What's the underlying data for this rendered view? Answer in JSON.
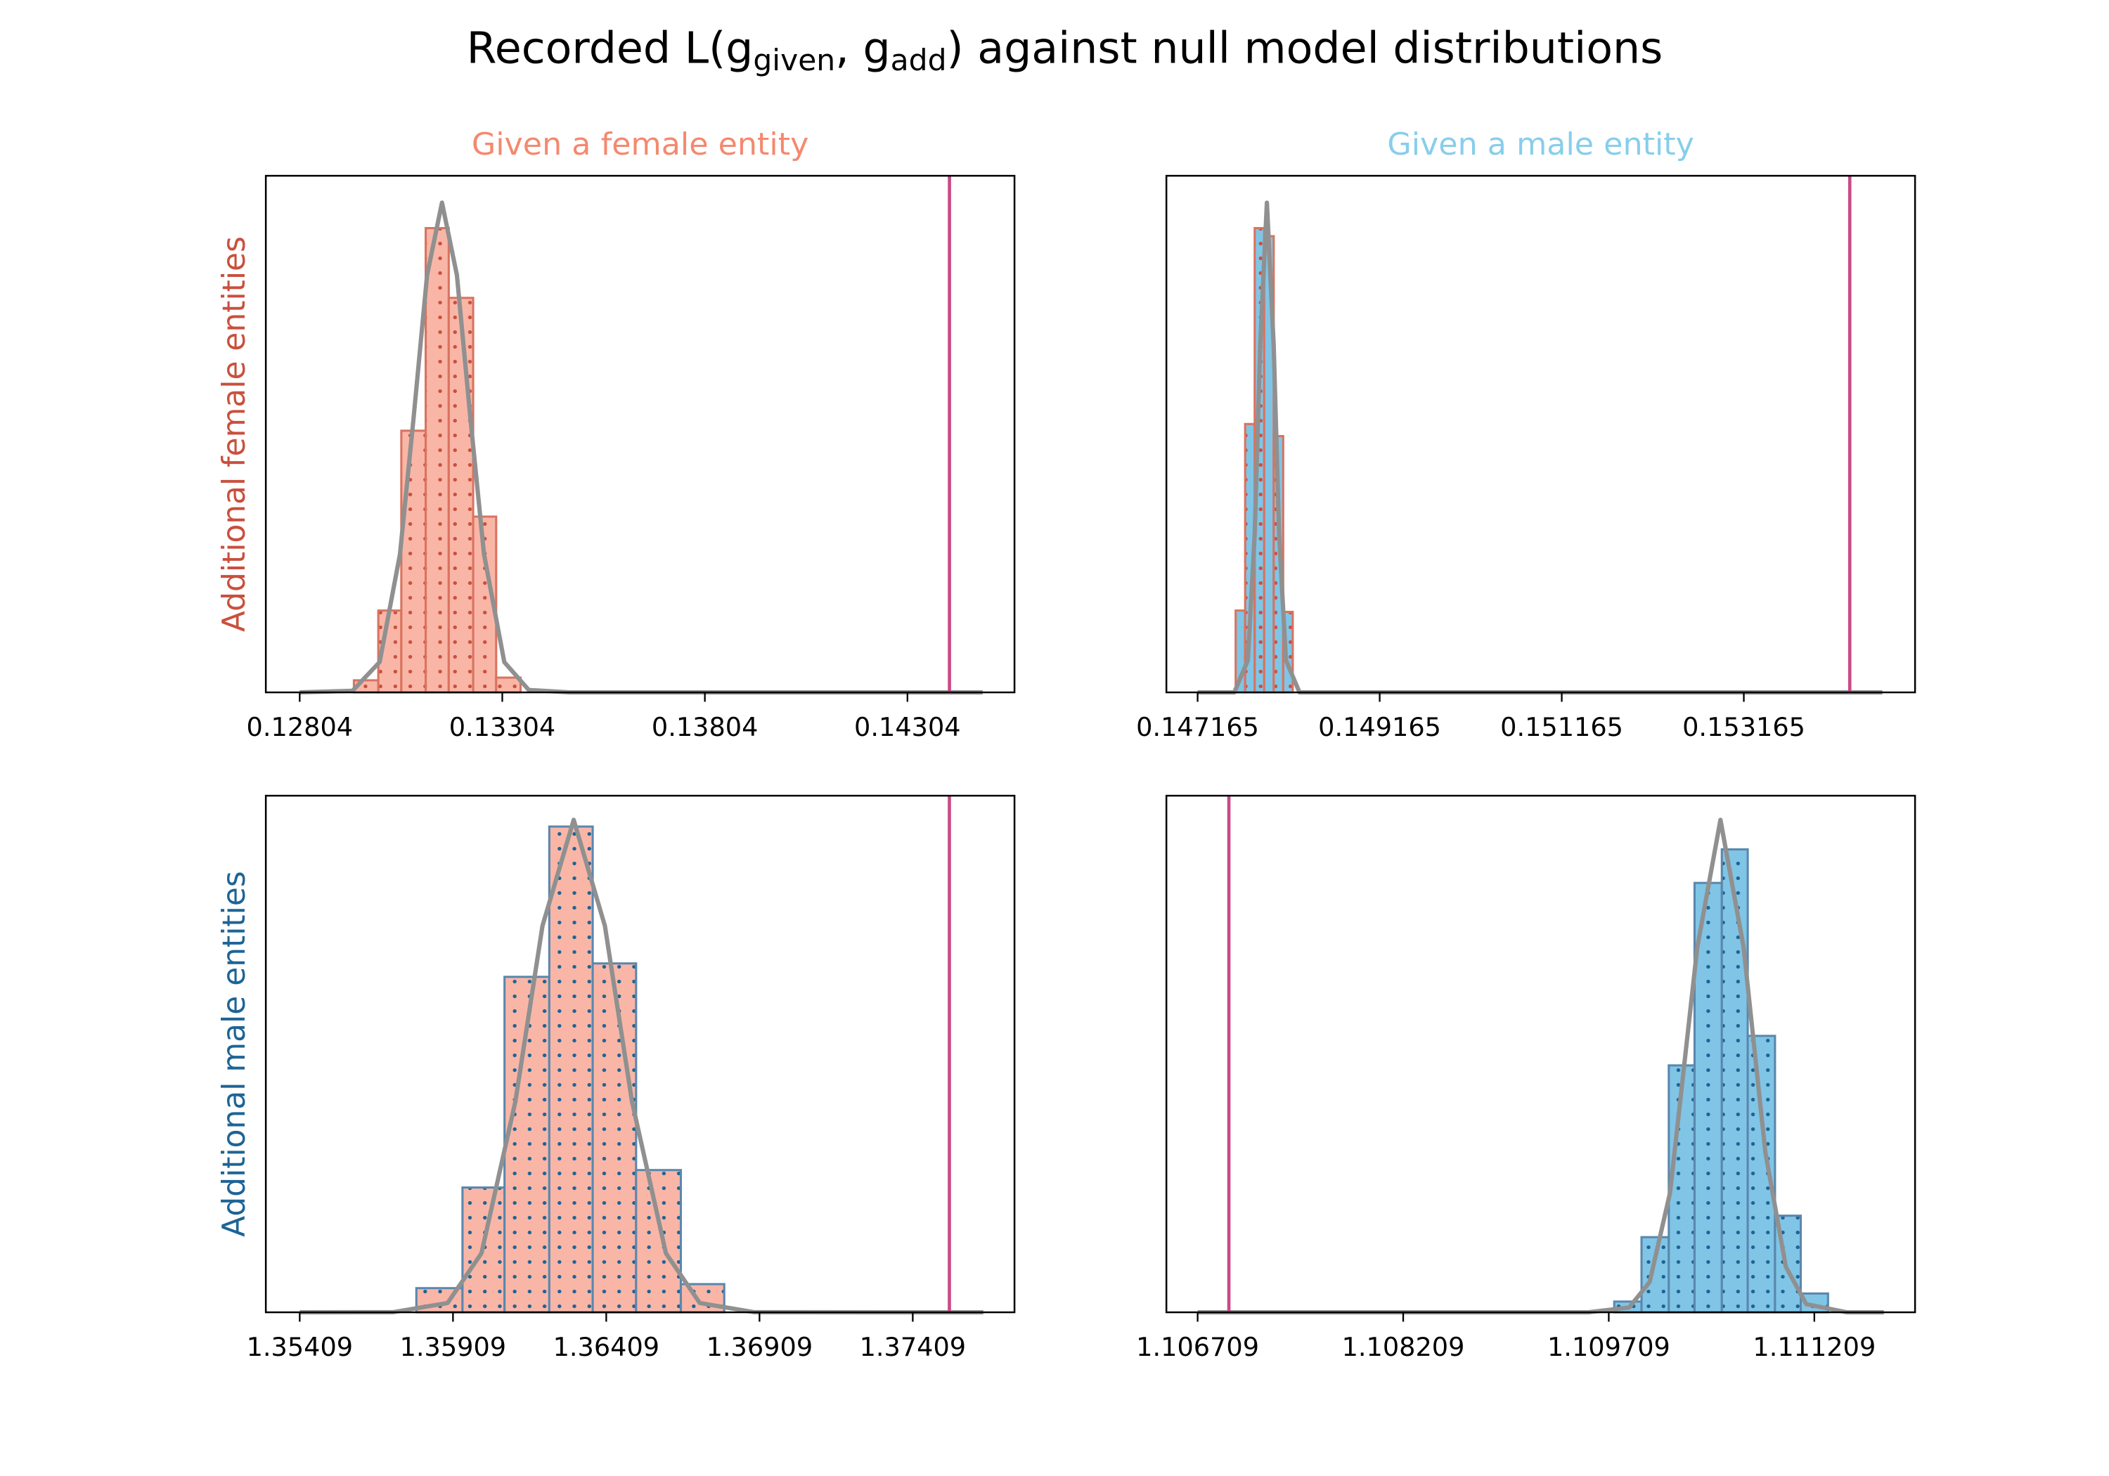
{
  "title": [
    "Recorded L(g",
    "given",
    ", g",
    "add",
    ") against null model distributions"
  ],
  "chart_data": [
    {
      "type": "histogram",
      "title": "Given a female entity",
      "title_color": "#f4896f",
      "ylabel": "Additional female entities",
      "ylabel_color": "#c9503d",
      "bins": [
        0.129378,
        0.12998,
        0.130548,
        0.13115,
        0.131719,
        0.132321,
        0.132889,
        0.133491
      ],
      "values": [
        9,
        61,
        195,
        346,
        294,
        131,
        11
      ],
      "color": "#f9b6a7",
      "edgecolor": "#d9735f",
      "hatch_color": "#c9503d",
      "kde": {
        "x": [
          0.12804,
          0.129344,
          0.130013,
          0.130515,
          0.130849,
          0.131184,
          0.131552,
          0.13192,
          0.132254,
          0.132589,
          0.13309,
          0.133692,
          0.134696,
          0.144896
        ],
        "values": [
          0,
          1.2,
          22.6,
          103,
          204,
          311,
          365,
          311,
          204,
          103,
          22.6,
          1.8,
          0,
          0
        ],
        "color": "#909090"
      },
      "vline": 0.144077,
      "vline_color": "#c94a8a",
      "xlim": [
        0.127204,
        0.145682
      ],
      "ylim": [
        0,
        385
      ],
      "xticks": [
        0.12804,
        0.13304,
        0.13804,
        0.14304
      ]
    },
    {
      "type": "histogram",
      "title": "Given a male entity",
      "title_color": "#87ceeb",
      "bins": [
        0.147583,
        0.147687,
        0.147792,
        0.147896,
        0.148001,
        0.148105,
        0.14821
      ],
      "values": [
        61,
        200,
        346,
        340,
        191,
        60
      ],
      "color": "#80c5e6",
      "edgecolor": "#d9735f",
      "hatch_color": "#c9503d",
      "kde": {
        "x": [
          0.147165,
          0.147568,
          0.147717,
          0.147792,
          0.147852,
          0.147926,
          0.148001,
          0.14806,
          0.148135,
          0.148284,
          0.154687
        ],
        "values": [
          0,
          0,
          24,
          118,
          258,
          365,
          258,
          118,
          24,
          0,
          0
        ],
        "color": "#909090"
      },
      "vline": 0.154329,
      "vline_color": "#c94a8a",
      "xlim": [
        0.146822,
        0.155046
      ],
      "ylim": [
        0,
        385
      ],
      "xticks": [
        0.147165,
        0.149165,
        0.151165,
        0.153165
      ]
    },
    {
      "type": "histogram",
      "ylabel": "Additional male entities",
      "ylabel_color": "#1d6496",
      "bins": [
        1.357895,
        1.3594,
        1.360771,
        1.362232,
        1.363648,
        1.365064,
        1.366524,
        1.36794
      ],
      "values": [
        18,
        93,
        250,
        362,
        260,
        106,
        21
      ],
      "color": "#f9b6a7",
      "edgecolor": "#5b87ad",
      "hatch_color": "#1d6496",
      "kde": {
        "x": [
          1.35409,
          1.357143,
          1.358913,
          1.360019,
          1.361125,
          1.36201,
          1.363028,
          1.364046,
          1.364931,
          1.366037,
          1.367143,
          1.368913,
          1.376391
        ],
        "values": [
          0,
          0.1,
          6.9,
          44,
          157,
          288,
          367,
          288,
          157,
          44,
          6.9,
          0.1,
          0
        ],
        "color": "#909090"
      },
      "vline": 1.375285,
      "vline_color": "#c94a8a",
      "xlim": [
        1.352984,
        1.377409
      ],
      "ylim": [
        0,
        385
      ],
      "xticks": [
        1.35409,
        1.35909,
        1.36409,
        1.36909,
        1.37409
      ]
    },
    {
      "type": "histogram",
      "bins": [
        1.109749,
        1.109948,
        1.110147,
        1.110335,
        1.110534,
        1.110723,
        1.110922,
        1.11111,
        1.111309
      ],
      "values": [
        8,
        56,
        184,
        320,
        345,
        206,
        72,
        14
      ],
      "color": "#80c5e6",
      "edgecolor": "#5b87ad",
      "hatch_color": "#1d6496",
      "kde": {
        "x": [
          1.106709,
          1.10956,
          1.109858,
          1.110007,
          1.110156,
          1.110355,
          1.110524,
          1.110693,
          1.110852,
          1.111001,
          1.11115,
          1.111448,
          1.111716
        ],
        "values": [
          0,
          0,
          3.6,
          22.5,
          89,
          272,
          367,
          272,
          119,
          34,
          6.1,
          0,
          0
        ],
        "color": "#909090"
      },
      "vline": 1.106937,
      "vline_color": "#c94a8a",
      "xlim": [
        1.106481,
        1.111944
      ],
      "ylim": [
        0,
        385
      ],
      "xticks": [
        1.106709,
        1.108209,
        1.109709,
        1.111209
      ]
    }
  ]
}
